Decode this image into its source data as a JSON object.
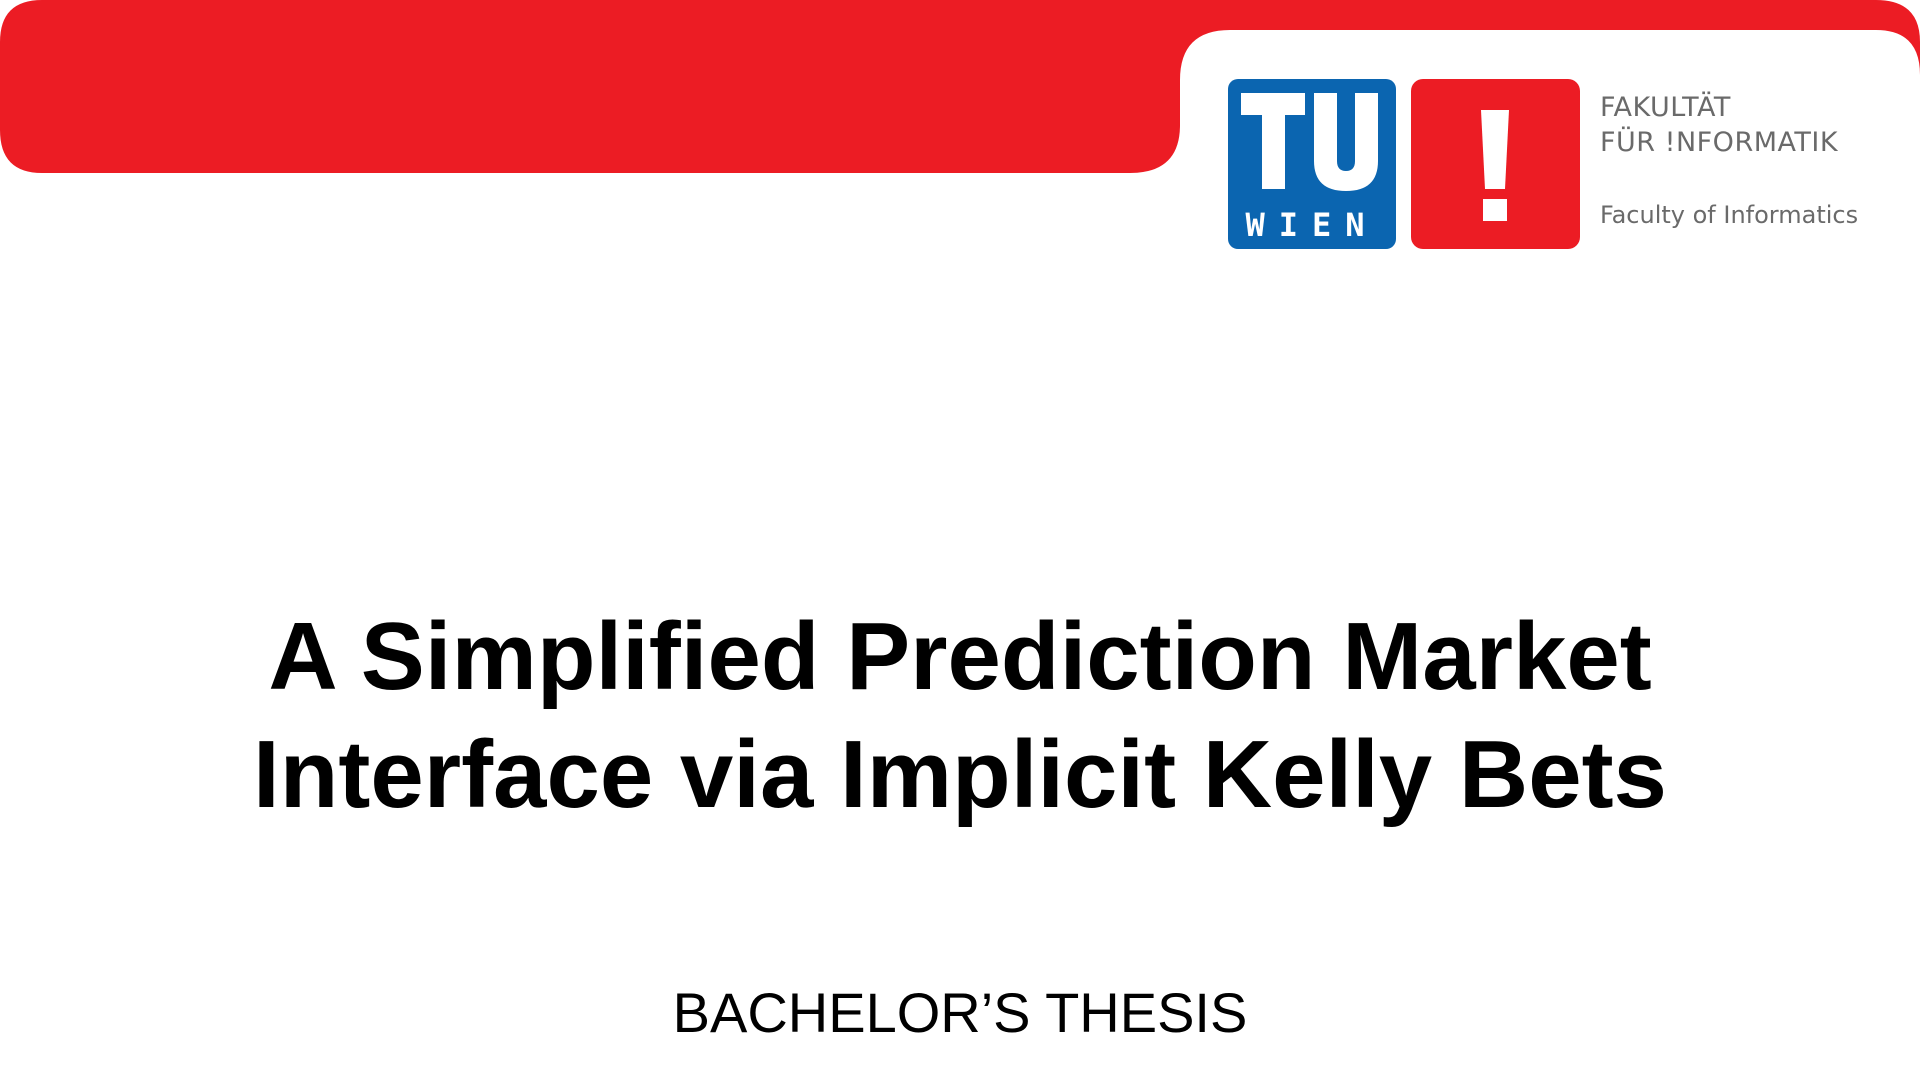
{
  "colors": {
    "accent_red": "#ec1c24",
    "tu_blue": "#0b65b0",
    "faculty_gray": "#6a6a6a",
    "text": "#000000"
  },
  "header": {
    "tu_logo": {
      "top_text": "TU",
      "bottom_text": "WIEN"
    },
    "informatik_logo": {
      "glyph": "!"
    },
    "faculty": {
      "line1": "FAKULTÄT",
      "line2": "FÜR !NFORMATIK",
      "english": "Faculty of Informatics"
    }
  },
  "document": {
    "title_line1": "A Simplified Prediction Market",
    "title_line2": "Interface via Implicit Kelly Bets",
    "type": "BACHELOR’S THESIS"
  }
}
